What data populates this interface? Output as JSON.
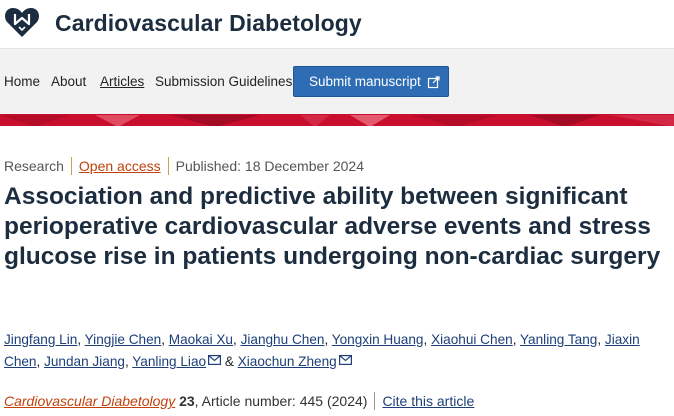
{
  "header": {
    "journal_name": "Cardiovascular Diabetology"
  },
  "nav": {
    "items": [
      "Home",
      "About",
      "Articles",
      "Submission Guidelines"
    ],
    "active": "Articles",
    "submit_label": "Submit manuscript"
  },
  "colors": {
    "brand_red": "#c8102e",
    "accent_blue": "#2e6db4",
    "title_navy": "#1c2d3f",
    "open_access_orange": "#c2410c"
  },
  "article": {
    "type": "Research",
    "access": "Open access",
    "published": "Published: 18 December 2024",
    "title": "Association and predictive ability between significant perioperative cardiovascular adverse events and stress glucose rise in patients undergoing non-cardiac surgery",
    "authors": [
      {
        "name": "Jingfang Lin"
      },
      {
        "name": "Yingjie Chen"
      },
      {
        "name": "Maokai Xu"
      },
      {
        "name": "Jianghu Chen"
      },
      {
        "name": "Yongxin Huang"
      },
      {
        "name": "Xiaohui Chen"
      },
      {
        "name": "Yanling Tang"
      },
      {
        "name": "Jiaxin Chen"
      },
      {
        "name": "Jundan Jiang"
      },
      {
        "name": "Yanling Liao",
        "email_icon": "envelope-icon"
      },
      {
        "name": "Xiaochun Zheng",
        "email_icon": "envelope-icon"
      }
    ],
    "author_joiner": "&",
    "citation": {
      "journal": "Cardiovascular Diabetology",
      "volume": "23",
      "article_number": ", Article number: 445 (2024)",
      "cite_label": "Cite this article"
    }
  }
}
